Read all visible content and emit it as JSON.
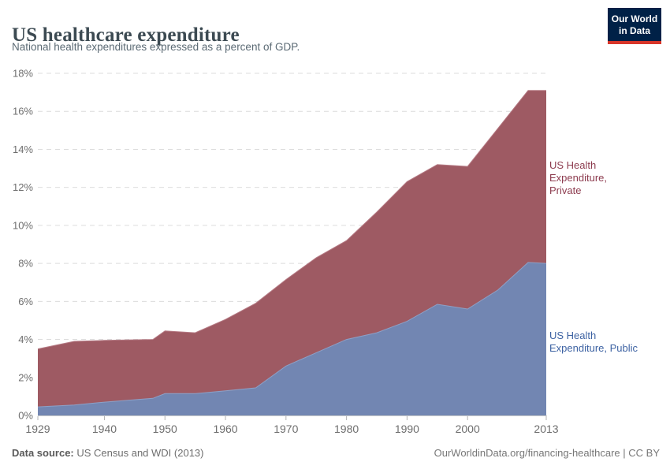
{
  "header": {
    "title": "US healthcare expenditure",
    "subtitle": "National health expenditures expressed as a percent of GDP.",
    "logo": {
      "line1": "Our World",
      "line2": "in Data",
      "bg": "#002147",
      "accent": "#d8362a"
    }
  },
  "chart_data": {
    "type": "area",
    "stacked": true,
    "title": "US healthcare expenditure",
    "subtitle": "National health expenditures expressed as a percent of GDP.",
    "xlabel": "",
    "ylabel": "",
    "xlim": [
      1929,
      2013
    ],
    "ylim": [
      0,
      18
    ],
    "grid": "horizontal-dashed",
    "legend_position": "right-of-plot",
    "x": [
      1929,
      1935,
      1940,
      1948,
      1950,
      1955,
      1960,
      1965,
      1970,
      1975,
      1980,
      1985,
      1990,
      1995,
      2000,
      2005,
      2010,
      2013
    ],
    "series": [
      {
        "name": "US Health Expenditure, Public",
        "label": "US Health\nExpenditure, Public",
        "color": "#7286b2",
        "edge_color": "#8ea0c6",
        "label_color": "#3e63a3",
        "values": [
          0.45,
          0.55,
          0.7,
          0.9,
          1.15,
          1.15,
          1.3,
          1.45,
          2.6,
          3.3,
          4.0,
          4.35,
          4.95,
          5.85,
          5.6,
          6.6,
          8.05,
          8.0
        ]
      },
      {
        "name": "US Health Expenditure, Private",
        "label": "US Health\nExpenditure,\nPrivate",
        "color": "#9e5a63",
        "edge_color": "#b57a84",
        "label_color": "#8d3c4f",
        "values": [
          3.05,
          3.35,
          3.25,
          3.1,
          3.3,
          3.2,
          3.75,
          4.45,
          4.55,
          5.0,
          5.2,
          6.35,
          7.35,
          7.35,
          7.5,
          8.5,
          9.05,
          9.1
        ]
      }
    ],
    "y_ticks": [
      0,
      2,
      4,
      6,
      8,
      10,
      12,
      14,
      16,
      18
    ],
    "y_tick_suffix": "%",
    "x_ticks": [
      1929,
      1940,
      1950,
      1960,
      1970,
      1980,
      1990,
      2000,
      2013
    ],
    "axis_text_color": "#6e6e6e",
    "gridline_color": "#dcdcdc",
    "tick_color": "#b4b4b4"
  },
  "footer": {
    "source_label": "Data source:",
    "source_value": " US Census and WDI (2013)",
    "link": "OurWorldinData.org/financing-healthcare | CC BY"
  }
}
